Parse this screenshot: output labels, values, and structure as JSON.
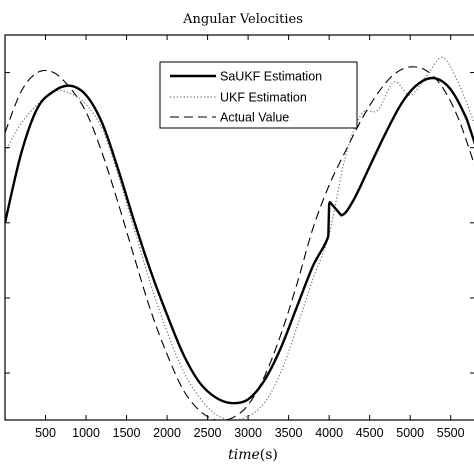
{
  "chart_data": {
    "type": "line",
    "title": "Angular Velocities",
    "xlabel": "time(s)",
    "xlabel_main": "time",
    "xlabel_unit": "(s)",
    "ylabel": "",
    "xlim": [
      0,
      5800
    ],
    "ylim": [
      -1.05,
      1.0
    ],
    "xticks": [
      500,
      1000,
      1500,
      2000,
      2500,
      3000,
      3500,
      4000,
      4500,
      5000,
      5500
    ],
    "yticks": [
      -0.8,
      -0.4,
      0,
      0.4,
      0.8
    ],
    "legend_position": "top-center",
    "grid": false,
    "series": [
      {
        "name": "SaUKF Estimation",
        "style": "solid",
        "color": "#000000",
        "x": [
          0,
          200,
          400,
          600,
          800,
          1000,
          1200,
          1400,
          1600,
          1800,
          2000,
          2200,
          2400,
          2600,
          2800,
          3000,
          3200,
          3400,
          3600,
          3800,
          3990,
          4000,
          4010,
          4150,
          4300,
          4500,
          4700,
          4900,
          5100,
          5300,
          5500,
          5700,
          5800
        ],
        "y": [
          0.0,
          0.37,
          0.61,
          0.7,
          0.73,
          0.68,
          0.53,
          0.28,
          0.0,
          -0.26,
          -0.49,
          -0.7,
          -0.85,
          -0.93,
          -0.96,
          -0.94,
          -0.84,
          -0.67,
          -0.45,
          -0.23,
          -0.07,
          0.1,
          0.11,
          0.04,
          0.12,
          0.3,
          0.48,
          0.64,
          0.74,
          0.77,
          0.71,
          0.55,
          0.42
        ]
      },
      {
        "name": "UKF Estimation",
        "style": "dotted",
        "color": "#6e6e6e",
        "x": [
          0,
          200,
          400,
          600,
          800,
          1000,
          1200,
          1400,
          1600,
          1800,
          2000,
          2200,
          2400,
          2600,
          2800,
          3000,
          3200,
          3400,
          3600,
          3800,
          4000,
          4200,
          4400,
          4600,
          4800,
          5000,
          5200,
          5400,
          5600,
          5800
        ],
        "y": [
          0.38,
          0.53,
          0.63,
          0.7,
          0.69,
          0.63,
          0.5,
          0.25,
          -0.04,
          -0.33,
          -0.58,
          -0.79,
          -0.93,
          -1.02,
          -1.05,
          -1.03,
          -0.96,
          -0.8,
          -0.56,
          -0.3,
          -0.06,
          0.35,
          0.58,
          0.6,
          0.75,
          0.68,
          0.78,
          0.88,
          0.74,
          0.52
        ]
      },
      {
        "name": "Actual Value",
        "style": "dashed",
        "color": "#000000",
        "x": [
          0,
          200,
          400,
          600,
          800,
          1000,
          1200,
          1400,
          1600,
          1800,
          2000,
          2200,
          2400,
          2600,
          2800,
          3000,
          3200,
          3400,
          3600,
          3800,
          4000,
          4200,
          4400,
          4600,
          4800,
          5000,
          5200,
          5400,
          5600,
          5800
        ],
        "y": [
          0.48,
          0.7,
          0.8,
          0.8,
          0.72,
          0.59,
          0.37,
          0.1,
          -0.19,
          -0.47,
          -0.7,
          -0.89,
          -1.0,
          -1.05,
          -1.04,
          -0.97,
          -0.82,
          -0.6,
          -0.33,
          -0.03,
          0.2,
          0.38,
          0.55,
          0.69,
          0.79,
          0.83,
          0.81,
          0.72,
          0.55,
          0.3
        ]
      }
    ]
  }
}
